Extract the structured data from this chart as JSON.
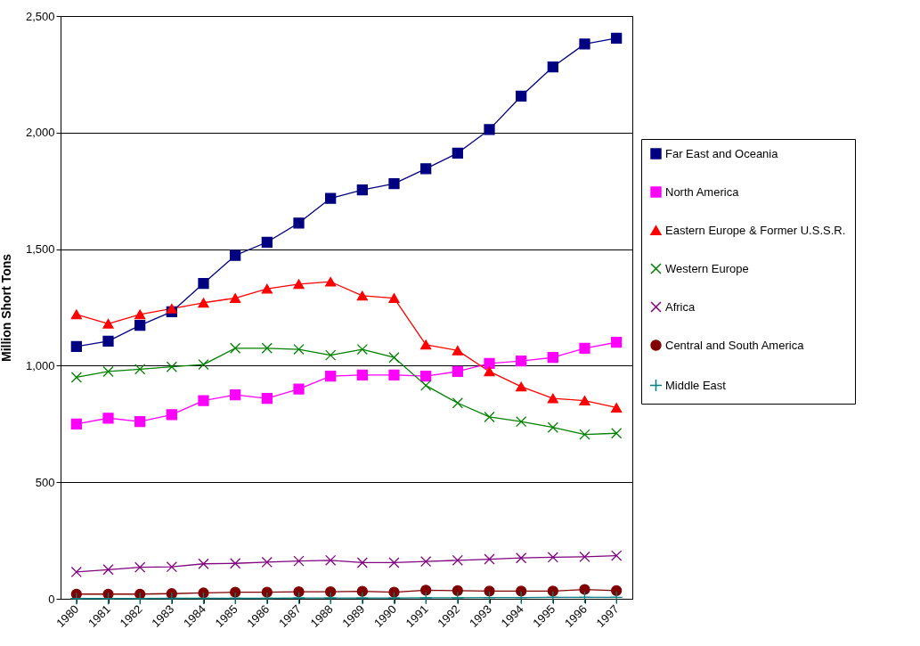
{
  "chart_data": {
    "type": "line",
    "ylabel": "Million Short Tons",
    "categories": [
      "1980",
      "1981",
      "1982",
      "1983",
      "1984",
      "1985",
      "1986",
      "1987",
      "1988",
      "1989",
      "1990",
      "1991",
      "1992",
      "1993",
      "1994",
      "1995",
      "1996",
      "1997"
    ],
    "ylim": [
      0,
      2500
    ],
    "yticks": [
      0,
      500,
      {
        "value": 1000,
        "label": "1,000"
      },
      {
        "value": 1500,
        "label": "1,500"
      },
      {
        "value": 2000,
        "label": "2,000"
      },
      {
        "value": 2500,
        "label": "2,500"
      }
    ],
    "grid": "y",
    "legend": "right",
    "line_style": "solid",
    "series": [
      {
        "name": "Far East and Oceania",
        "color": "#000080",
        "marker": "square",
        "values": [
          1082,
          1105,
          1173,
          1231,
          1353,
          1473,
          1530,
          1612,
          1718,
          1754,
          1781,
          1845,
          1912,
          2013,
          2156,
          2282,
          2380,
          2405
        ]
      },
      {
        "name": "North America",
        "color": "#ff00ff",
        "marker": "square",
        "values": [
          750,
          775,
          760,
          790,
          850,
          875,
          860,
          900,
          955,
          960,
          960,
          955,
          975,
          1010,
          1020,
          1035,
          1075,
          1100
        ]
      },
      {
        "name": "Eastern Europe & Former U.S.S.R.",
        "color": "#ff0000",
        "marker": "triangle",
        "values": [
          1220,
          1180,
          1220,
          1245,
          1270,
          1290,
          1330,
          1350,
          1360,
          1300,
          1290,
          1090,
          1065,
          975,
          910,
          860,
          850,
          820
        ]
      },
      {
        "name": "Western Europe",
        "color": "#008000",
        "marker": "cross",
        "values": [
          950,
          975,
          985,
          995,
          1005,
          1075,
          1075,
          1070,
          1045,
          1070,
          1035,
          915,
          840,
          780,
          760,
          735,
          705,
          710
        ]
      },
      {
        "name": "Africa",
        "color": "#800080",
        "marker": "cross",
        "values": [
          115,
          125,
          135,
          137,
          150,
          152,
          157,
          162,
          165,
          155,
          155,
          160,
          165,
          170,
          175,
          178,
          180,
          185
        ]
      },
      {
        "name": "Central and South America",
        "color": "#800000",
        "marker": "circle",
        "values": [
          20,
          20,
          20,
          22,
          25,
          28,
          28,
          30,
          30,
          32,
          28,
          37,
          35,
          33,
          33,
          33,
          40,
          35
        ]
      },
      {
        "name": "Middle East",
        "color": "#008080",
        "marker": "plus",
        "values": [
          1,
          1,
          1,
          2,
          2,
          2,
          2,
          3,
          3,
          3,
          3,
          4,
          4,
          5,
          5,
          6,
          6,
          6
        ]
      }
    ]
  }
}
